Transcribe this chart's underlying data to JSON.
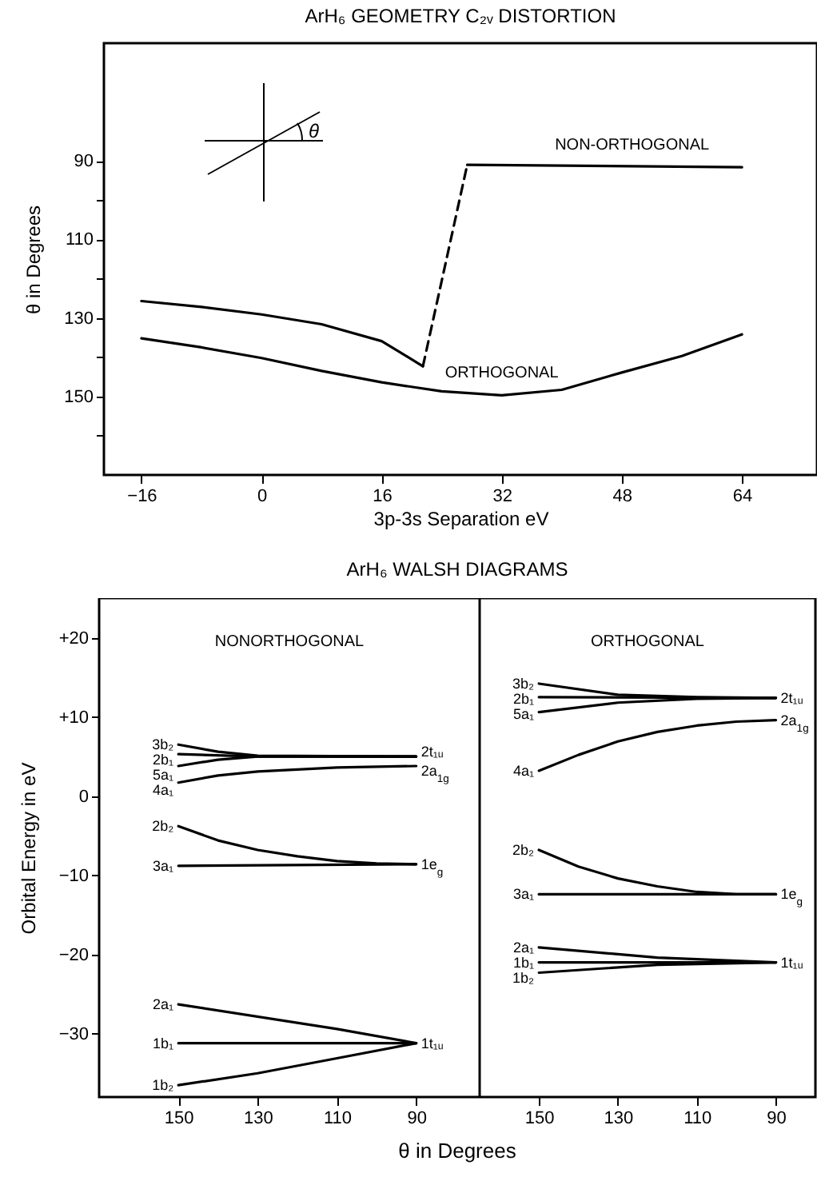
{
  "chart_data": [
    {
      "type": "line",
      "title": "ArH₆ GEOMETRY C₂ᵥ DISTORTION",
      "xlabel": "3p-3s Separation eV",
      "ylabel": "θ in Degrees",
      "xlim": [
        -21,
        74
      ],
      "ylim": [
        170,
        60
      ],
      "xticks": [
        -16,
        0,
        16,
        32,
        48,
        64
      ],
      "yticks": [
        90,
        {
          "value": 100,
          "label": null
        },
        110,
        {
          "value": 120,
          "label": null
        },
        130,
        {
          "value": 140,
          "label": null
        },
        150,
        {
          "value": 160,
          "label": null
        }
      ],
      "annotations": [
        "θ"
      ],
      "series": [
        {
          "name": "ORTHOGONAL",
          "color": "#000000",
          "x": [
            -16,
            -8,
            0,
            8,
            16,
            24,
            32,
            40,
            48,
            56,
            64
          ],
          "values": [
            135.2,
            137.5,
            140.2,
            143.5,
            146.4,
            148.7,
            149.7,
            148.3,
            143.9,
            139.7,
            134.2
          ]
        },
        {
          "color": "#000000",
          "x": [
            -16,
            -8,
            0,
            8,
            16,
            21.5
          ],
          "values": [
            125.7,
            127.2,
            129.1,
            131.6,
            135.9,
            142.3
          ]
        },
        {
          "color": "#000000",
          "line_style": "dashed",
          "x": [
            21.5,
            27.4
          ],
          "values": [
            142.3,
            91
          ]
        },
        {
          "name": "NON-ORTHOGONAL",
          "color": "#000000",
          "x": [
            27.4,
            64
          ],
          "values": [
            91,
            91.6
          ]
        }
      ]
    },
    {
      "type": "line",
      "title": "ArH₆ WALSH DIAGRAMS",
      "xlabel": "θ in Degrees",
      "ylabel": "Orbital Energy in eV",
      "xlim": [
        170,
        74
      ],
      "ylim": [
        -38,
        25
      ],
      "xticks": [
        150,
        130,
        110,
        90
      ],
      "yticks": [
        {
          "value": 20,
          "label": "+20"
        },
        {
          "value": 10,
          "label": "+10"
        },
        0,
        -10,
        -20,
        -30
      ],
      "annotations": [
        "NONORTHOGONAL",
        "2t₁ᵤ",
        "2a$_{1g}$",
        "1e$_{g}$",
        "1t₁ᵤ"
      ],
      "series": [
        {
          "name": "3b₂",
          "color": "#000000",
          "x": [
            150,
            140,
            130,
            90
          ],
          "values": [
            6.5,
            5.6,
            5.1,
            5.0
          ]
        },
        {
          "name": "2b₁",
          "color": "#000000",
          "x": [
            150,
            130,
            90
          ],
          "values": [
            5.3,
            5.0,
            5.0
          ]
        },
        {
          "name": "5a₁",
          "color": "#000000",
          "x": [
            150,
            140,
            130,
            90
          ],
          "values": [
            3.8,
            4.6,
            5.0,
            5.0
          ]
        },
        {
          "name": "4a₁",
          "color": "#000000",
          "x": [
            150,
            140,
            130,
            110,
            90
          ],
          "values": [
            1.7,
            2.6,
            3.1,
            3.6,
            3.8
          ]
        },
        {
          "name": "2b₂",
          "color": "#000000",
          "x": [
            150,
            140,
            130,
            120,
            110,
            100,
            90
          ],
          "values": [
            -3.8,
            -5.6,
            -6.8,
            -7.6,
            -8.2,
            -8.5,
            -8.6
          ]
        },
        {
          "name": "3a₁",
          "color": "#000000",
          "x": [
            150,
            90
          ],
          "values": [
            -8.8,
            -8.6
          ]
        },
        {
          "name": "2a₁",
          "color": "#000000",
          "x": [
            150,
            110,
            90
          ],
          "values": [
            -26.3,
            -29.4,
            -31.2
          ]
        },
        {
          "name": "1b₁",
          "color": "#000000",
          "x": [
            150,
            90
          ],
          "values": [
            -31.2,
            -31.2
          ]
        },
        {
          "name": "1b₂",
          "color": "#000000",
          "x": [
            150,
            130,
            110,
            90
          ],
          "values": [
            -36.5,
            -35.0,
            -33.1,
            -31.2
          ]
        }
      ]
    },
    {
      "type": "line",
      "xlim": [
        165,
        80
      ],
      "ylim": [
        -38,
        25
      ],
      "xticks": [
        150,
        130,
        110,
        90
      ],
      "tick_labels": "x",
      "annotations": [
        "ORTHOGONAL",
        "2t₁ᵤ",
        "2a$_{1g}$",
        "1e$_{g}$",
        "1t₁ᵤ"
      ],
      "series": [
        {
          "name": "3b₂",
          "color": "#000000",
          "x": [
            150,
            130,
            110,
            90
          ],
          "values": [
            14.2,
            12.8,
            12.5,
            12.4
          ]
        },
        {
          "name": "2b₁",
          "color": "#000000",
          "x": [
            150,
            90
          ],
          "values": [
            12.5,
            12.4
          ]
        },
        {
          "name": "5a₁",
          "color": "#000000",
          "x": [
            150,
            130,
            110,
            90
          ],
          "values": [
            10.6,
            11.8,
            12.3,
            12.4
          ]
        },
        {
          "name": "4a₁",
          "color": "#000000",
          "x": [
            150,
            140,
            130,
            120,
            110,
            100,
            90
          ],
          "values": [
            3.2,
            5.2,
            6.9,
            8.1,
            8.9,
            9.4,
            9.6
          ]
        },
        {
          "name": "2b₂",
          "color": "#000000",
          "x": [
            150,
            140,
            130,
            120,
            110,
            100,
            90
          ],
          "values": [
            -6.8,
            -8.9,
            -10.4,
            -11.4,
            -12.1,
            -12.4,
            -12.4
          ]
        },
        {
          "name": "3a₁",
          "color": "#000000",
          "x": [
            150,
            90
          ],
          "values": [
            -12.4,
            -12.4
          ]
        },
        {
          "name": "2a₁",
          "color": "#000000",
          "x": [
            150,
            120,
            90
          ],
          "values": [
            -19.1,
            -20.4,
            -21.0
          ]
        },
        {
          "name": "1b₁",
          "color": "#000000",
          "x": [
            150,
            90
          ],
          "values": [
            -21.0,
            -21.0
          ]
        },
        {
          "name": "1b₂",
          "color": "#000000",
          "x": [
            150,
            120,
            90
          ],
          "values": [
            -22.3,
            -21.3,
            -21.0
          ]
        }
      ]
    }
  ]
}
